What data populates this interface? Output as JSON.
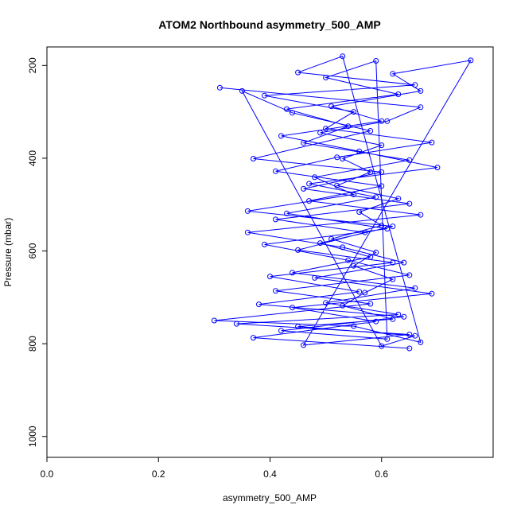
{
  "chart_data": {
    "type": "line",
    "title": "ATOM2 Northbound asymmetry_500_AMP",
    "xlabel": "asymmetry_500_AMP",
    "ylabel": "Pressure (mbar)",
    "xlim": [
      0.0,
      0.8
    ],
    "ylim": [
      1045,
      160
    ],
    "y_reversed": true,
    "x_ticks": [
      0.0,
      0.2,
      0.4,
      0.6
    ],
    "x_tick_labels": [
      "0.0",
      "0.2",
      "0.4",
      "0.6"
    ],
    "y_ticks": [
      200,
      400,
      600,
      800,
      1000
    ],
    "y_tick_labels": [
      "200",
      "400",
      "600",
      "800",
      "1000"
    ],
    "grid": false,
    "series": [
      {
        "color": "#0000ff",
        "marker": "open-circle",
        "points": [
          [
            0.31,
            248
          ],
          [
            0.67,
            290
          ],
          [
            0.61,
            320
          ],
          [
            0.49,
            345
          ],
          [
            0.6,
            372
          ],
          [
            0.53,
            401
          ],
          [
            0.58,
            430
          ],
          [
            0.52,
            459
          ],
          [
            0.63,
            487
          ],
          [
            0.56,
            516
          ],
          [
            0.6,
            545
          ],
          [
            0.51,
            574
          ],
          [
            0.59,
            603
          ],
          [
            0.55,
            632
          ],
          [
            0.62,
            661
          ],
          [
            0.57,
            690
          ],
          [
            0.53,
            718
          ],
          [
            0.62,
            747
          ],
          [
            0.45,
            763
          ],
          [
            0.66,
            783
          ],
          [
            0.6,
            805
          ],
          [
            0.35,
            255
          ],
          [
            0.44,
            302
          ],
          [
            0.58,
            341
          ],
          [
            0.37,
            401
          ],
          [
            0.6,
            430
          ],
          [
            0.46,
            466
          ],
          [
            0.65,
            498
          ],
          [
            0.41,
            532
          ],
          [
            0.57,
            560
          ],
          [
            0.45,
            598
          ],
          [
            0.62,
            625
          ],
          [
            0.4,
            655
          ],
          [
            0.56,
            688
          ],
          [
            0.38,
            715
          ],
          [
            0.64,
            742
          ],
          [
            0.42,
            772
          ],
          [
            0.61,
            790
          ],
          [
            0.59,
            190
          ],
          [
            0.5,
            226
          ],
          [
            0.63,
            262
          ],
          [
            0.43,
            294
          ],
          [
            0.54,
            331
          ],
          [
            0.46,
            367
          ],
          [
            0.65,
            404
          ],
          [
            0.48,
            441
          ],
          [
            0.55,
            478
          ],
          [
            0.36,
            514
          ],
          [
            0.62,
            547
          ],
          [
            0.49,
            583
          ],
          [
            0.58,
            613
          ],
          [
            0.44,
            647
          ],
          [
            0.66,
            680
          ],
          [
            0.5,
            712
          ],
          [
            0.63,
            737
          ],
          [
            0.34,
            757
          ],
          [
            0.65,
            780
          ],
          [
            0.46,
            803
          ],
          [
            0.76,
            189
          ],
          [
            0.62,
            218
          ],
          [
            0.67,
            255
          ],
          [
            0.51,
            288
          ],
          [
            0.6,
            320
          ],
          [
            0.42,
            352
          ],
          [
            0.56,
            385
          ],
          [
            0.7,
            420
          ],
          [
            0.47,
            455
          ],
          [
            0.59,
            484
          ],
          [
            0.43,
            519
          ],
          [
            0.61,
            552
          ],
          [
            0.39,
            586
          ],
          [
            0.54,
            620
          ],
          [
            0.65,
            652
          ],
          [
            0.41,
            686
          ],
          [
            0.58,
            714
          ],
          [
            0.3,
            750
          ],
          [
            0.55,
            762
          ],
          [
            0.67,
            797
          ],
          [
            0.53,
            180
          ],
          [
            0.45,
            215
          ],
          [
            0.66,
            242
          ],
          [
            0.39,
            265
          ],
          [
            0.55,
            300
          ],
          [
            0.5,
            336
          ],
          [
            0.69,
            366
          ],
          [
            0.52,
            398
          ],
          [
            0.41,
            428
          ],
          [
            0.6,
            460
          ],
          [
            0.47,
            492
          ],
          [
            0.67,
            522
          ],
          [
            0.36,
            560
          ],
          [
            0.53,
            592
          ],
          [
            0.64,
            625
          ],
          [
            0.48,
            658
          ],
          [
            0.69,
            692
          ],
          [
            0.44,
            722
          ],
          [
            0.59,
            752
          ],
          [
            0.37,
            787
          ],
          [
            0.65,
            810
          ]
        ]
      }
    ]
  }
}
